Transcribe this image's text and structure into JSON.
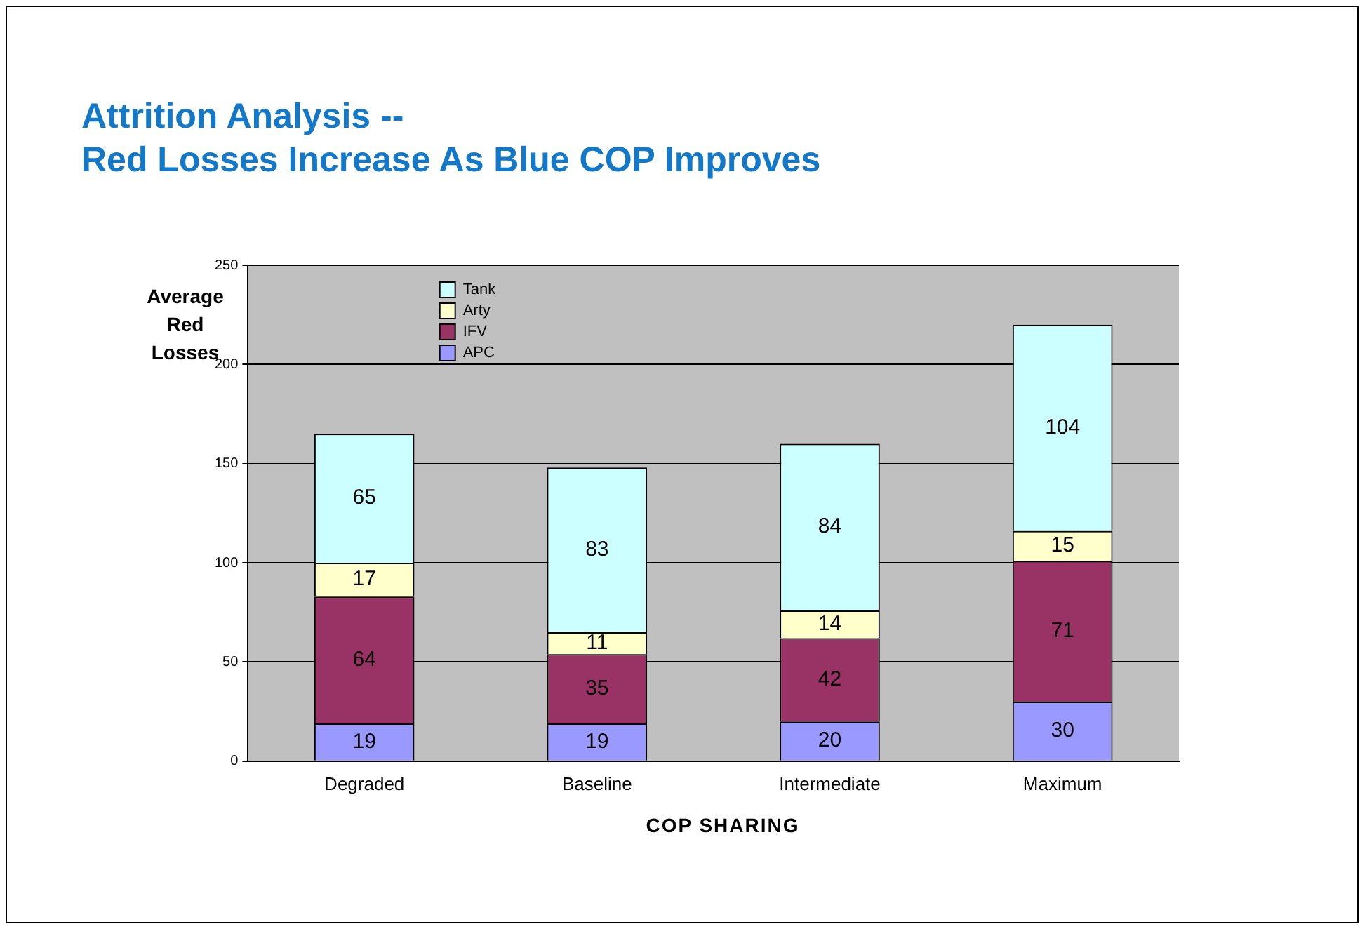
{
  "chart_data": {
    "type": "bar",
    "title": "Attrition Analysis --\nRed Losses Increase As Blue COP Improves",
    "xlabel": "COP SHARING",
    "ylabel": "Average Red Losses",
    "categories": [
      "Degraded",
      "Baseline",
      "Intermediate",
      "Maximum"
    ],
    "series": [
      {
        "name": "APC",
        "color": "#9999ff",
        "values": [
          19,
          19,
          20,
          30
        ]
      },
      {
        "name": "IFV",
        "color": "#993366",
        "values": [
          64,
          35,
          42,
          71
        ]
      },
      {
        "name": "Arty",
        "color": "#ffffcc",
        "values": [
          17,
          11,
          14,
          15
        ]
      },
      {
        "name": "Tank",
        "color": "#ccffff",
        "values": [
          65,
          83,
          84,
          104
        ]
      }
    ],
    "stacked": true,
    "ylim": [
      0,
      250
    ],
    "yticks": [
      0,
      50,
      100,
      150,
      200,
      250
    ],
    "grid": "y",
    "legend": "top left",
    "data_labels": true
  }
}
